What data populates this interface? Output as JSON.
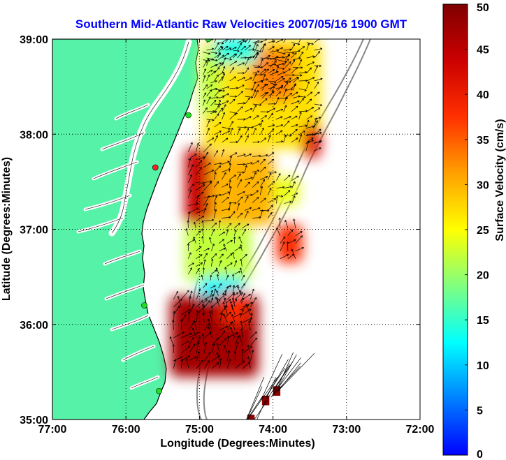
{
  "chart_data": {
    "type": "heatmap",
    "title": "Southern Mid-Atlantic Raw Velocities 2007/05/16 1900 GMT",
    "xlabel": "Longitude (Degrees:Minutes)",
    "ylabel": "Latitude (Degrees:Minutes)",
    "xlim": [
      -77,
      -72
    ],
    "ylim": [
      35,
      39
    ],
    "x_ticks": [
      {
        "value": -77,
        "label": "77:00"
      },
      {
        "value": -76,
        "label": "76:00"
      },
      {
        "value": -75,
        "label": "75:00"
      },
      {
        "value": -74,
        "label": "74:00"
      },
      {
        "value": -73,
        "label": "73:00"
      },
      {
        "value": -72,
        "label": "72:00"
      }
    ],
    "y_ticks": [
      {
        "value": 39,
        "label": "39:00"
      },
      {
        "value": 38,
        "label": "38:00"
      },
      {
        "value": 37,
        "label": "37:00"
      },
      {
        "value": 36,
        "label": "36:00"
      },
      {
        "value": 35,
        "label": "35:00"
      }
    ],
    "grid": true,
    "colorbar": {
      "label": "Surface Velocity (cm/s)",
      "range": [
        0,
        50
      ],
      "ticks": [
        {
          "value": 0,
          "label": "0"
        },
        {
          "value": 5,
          "label": "5"
        },
        {
          "value": 10,
          "label": "10"
        },
        {
          "value": 15,
          "label": "15"
        },
        {
          "value": 20,
          "label": "20"
        },
        {
          "value": 25,
          "label": "25"
        },
        {
          "value": 30,
          "label": "30"
        },
        {
          "value": 35,
          "label": "35"
        },
        {
          "value": 40,
          "label": "40"
        },
        {
          "value": 45,
          "label": "45"
        },
        {
          "value": 50,
          "label": "50"
        }
      ]
    },
    "colors": {
      "land": "#55f2a8",
      "title": "#0000ff",
      "stations": "#22dd22",
      "station_highlight": "#ff2020",
      "bathymetry": "#888888"
    },
    "velocity_patches": [
      {
        "region": "north",
        "lon": [
          -74.95,
          -73.35
        ],
        "lat": [
          37.85,
          39.0
        ],
        "speed": 27
      },
      {
        "region": "north-west-edge",
        "lon": [
          -75.0,
          -74.7
        ],
        "lat": [
          38.2,
          38.9
        ],
        "speed": 22
      },
      {
        "region": "north-core",
        "lon": [
          -74.3,
          -73.7
        ],
        "lat": [
          38.35,
          38.9
        ],
        "speed": 33
      },
      {
        "region": "north-cyan",
        "lon": [
          -74.8,
          -74.2
        ],
        "lat": [
          38.75,
          39.0
        ],
        "speed": 14
      },
      {
        "region": "north-east-red",
        "lon": [
          -73.6,
          -73.35
        ],
        "lat": [
          37.75,
          38.1
        ],
        "speed": 42
      },
      {
        "region": "central-red-west",
        "lon": [
          -75.2,
          -74.85
        ],
        "lat": [
          37.05,
          37.85
        ],
        "speed": 44
      },
      {
        "region": "central",
        "lon": [
          -74.85,
          -74.0
        ],
        "lat": [
          37.05,
          37.8
        ],
        "speed": 30
      },
      {
        "region": "central-east",
        "lon": [
          -74.0,
          -73.65
        ],
        "lat": [
          37.25,
          37.55
        ],
        "speed": 24
      },
      {
        "region": "central-east-red",
        "lon": [
          -73.95,
          -73.6
        ],
        "lat": [
          36.65,
          37.05
        ],
        "speed": 38
      },
      {
        "region": "south-central",
        "lon": [
          -75.2,
          -74.3
        ],
        "lat": [
          36.45,
          37.05
        ],
        "speed": 22
      },
      {
        "region": "south-cyan",
        "lon": [
          -75.0,
          -74.4
        ],
        "lat": [
          36.15,
          36.5
        ],
        "speed": 12
      },
      {
        "region": "south-red",
        "lon": [
          -75.4,
          -74.2
        ],
        "lat": [
          35.45,
          36.3
        ],
        "speed": 47
      },
      {
        "region": "south-orange",
        "lon": [
          -74.7,
          -74.35
        ],
        "lat": [
          36.0,
          36.35
        ],
        "speed": 38
      }
    ],
    "scattered_cells": [
      {
        "lon": [
          -74.0,
          -73.9
        ],
        "lat": [
          35.25,
          35.35
        ],
        "speed": 49
      },
      {
        "lon": [
          -74.15,
          -74.05
        ],
        "lat": [
          35.15,
          35.25
        ],
        "speed": 49
      },
      {
        "lon": [
          -74.35,
          -74.25
        ],
        "lat": [
          34.95,
          35.05
        ],
        "speed": 49
      }
    ],
    "stations": [
      {
        "lon": -74.88,
        "lat": 39.0
      },
      {
        "lon": -75.15,
        "lat": 38.2
      },
      {
        "lon": -75.6,
        "lat": 37.65
      },
      {
        "lon": -75.75,
        "lat": 36.2
      },
      {
        "lon": -75.55,
        "lat": 35.3
      }
    ]
  }
}
